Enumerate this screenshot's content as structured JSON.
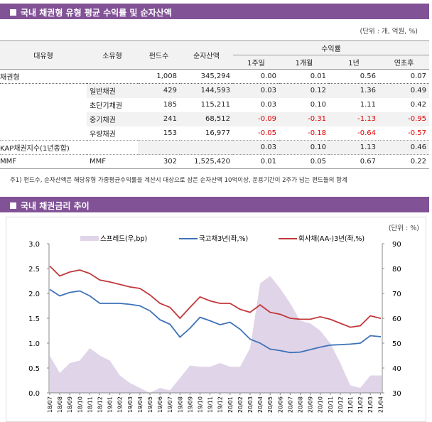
{
  "section1": {
    "title": "국내 채권형 유형 평균 수익률 및 순자산액",
    "unit": "(단위 : 개, 억원, %)",
    "headers": {
      "major": "대유형",
      "minor": "소유형",
      "funds": "펀드수",
      "assets": "순자산액",
      "returns": "수익률",
      "w1": "1주일",
      "m1": "1개월",
      "y1": "1년",
      "ytd": "연초후"
    },
    "rows": [
      {
        "major": "채권형",
        "minor": "",
        "funds": "1,008",
        "assets": "345,294",
        "w1": "0.00",
        "m1": "0.01",
        "y1": "0.56",
        "ytd": "0.07"
      },
      {
        "major": "",
        "minor": "일반채권",
        "funds": "429",
        "assets": "144,593",
        "w1": "0.03",
        "m1": "0.12",
        "y1": "1.36",
        "ytd": "0.49"
      },
      {
        "major": "",
        "minor": "초단기채권",
        "funds": "185",
        "assets": "115,211",
        "w1": "0.03",
        "m1": "0.10",
        "y1": "1.11",
        "ytd": "0.42"
      },
      {
        "major": "",
        "minor": "중기채권",
        "funds": "241",
        "assets": "68,512",
        "w1": "-0.09",
        "m1": "-0.31",
        "y1": "-1.13",
        "ytd": "-0.95"
      },
      {
        "major": "",
        "minor": "우량채권",
        "funds": "153",
        "assets": "16,977",
        "w1": "-0.05",
        "m1": "-0.18",
        "y1": "-0.64",
        "ytd": "-0.57"
      },
      {
        "major": "KAP채권지수(1년종합)",
        "minor": "",
        "funds": "",
        "assets": "",
        "w1": "0.03",
        "m1": "0.10",
        "y1": "1.13",
        "ytd": "0.46"
      },
      {
        "major": "MMF",
        "minor": "MMF",
        "funds": "302",
        "assets": "1,525,420",
        "w1": "0.01",
        "m1": "0.05",
        "y1": "0.67",
        "ytd": "0.22"
      }
    ],
    "footnote": "주1) 펀드수, 순자산액은 해당유형 가중평균수익률을 계산시 대상으로 삼은 순자산액 10억이상, 운용기간이 2주가 넘는 펀드들의 합계"
  },
  "section2": {
    "title": "국내 채권금리 추이"
  },
  "chart_data": {
    "type": "line",
    "unit": "(단위 : %)",
    "categories": [
      "18/07",
      "18/08",
      "18/09",
      "18/10",
      "18/11",
      "18/12",
      "19/01",
      "19/02",
      "19/03",
      "19/04",
      "19/05",
      "19/06",
      "19/07",
      "19/08",
      "19/09",
      "19/10",
      "19/11",
      "19/12",
      "20/01",
      "20/02",
      "20/03",
      "20/04",
      "20/05",
      "20/06",
      "20/07",
      "20/08",
      "20/09",
      "20/10",
      "20/11",
      "20/12",
      "21/01",
      "21/02",
      "21/03",
      "21/04"
    ],
    "left_axis": {
      "range": [
        0,
        3.0
      ],
      "ticks": [
        "0.0",
        "0.5",
        "1.0",
        "1.5",
        "2.0",
        "2.5",
        "3.0"
      ]
    },
    "right_axis": {
      "range": [
        30,
        90
      ],
      "ticks": [
        "30",
        "40",
        "50",
        "60",
        "70",
        "80",
        "90"
      ]
    },
    "series": [
      {
        "name": "스프레드(우,bp)",
        "type": "area",
        "axis": "right",
        "color": "#e0d4e8",
        "values": [
          45,
          38,
          42,
          43,
          48,
          45,
          43,
          37,
          34,
          32,
          29,
          32,
          31,
          36,
          41,
          40.5,
          40.5,
          42,
          40.5,
          40.5,
          48,
          74,
          77,
          72,
          66,
          59,
          58,
          55,
          50,
          42,
          33,
          32,
          37,
          37
        ]
      },
      {
        "name": "국고채3년(좌,%)",
        "type": "line",
        "axis": "left",
        "color": "#3d72b8",
        "values": [
          2.08,
          1.95,
          2.02,
          2.05,
          1.95,
          1.8,
          1.8,
          1.8,
          1.78,
          1.75,
          1.65,
          1.47,
          1.38,
          1.12,
          1.3,
          1.52,
          1.45,
          1.37,
          1.42,
          1.28,
          1.08,
          1.0,
          0.88,
          0.85,
          0.81,
          0.82,
          0.87,
          0.92,
          0.96,
          0.97,
          0.98,
          1.0,
          1.15,
          1.13
        ]
      },
      {
        "name": "회사채(AA-)3년(좌,%)",
        "type": "line",
        "axis": "left",
        "color": "#c0393b",
        "values": [
          2.55,
          2.35,
          2.43,
          2.47,
          2.4,
          2.27,
          2.23,
          2.18,
          2.13,
          2.1,
          1.97,
          1.8,
          1.72,
          1.5,
          1.72,
          1.93,
          1.85,
          1.8,
          1.8,
          1.68,
          1.62,
          1.77,
          1.62,
          1.58,
          1.5,
          1.48,
          1.48,
          1.53,
          1.48,
          1.4,
          1.32,
          1.35,
          1.55,
          1.5
        ]
      }
    ],
    "grid": false,
    "legend": "top"
  }
}
